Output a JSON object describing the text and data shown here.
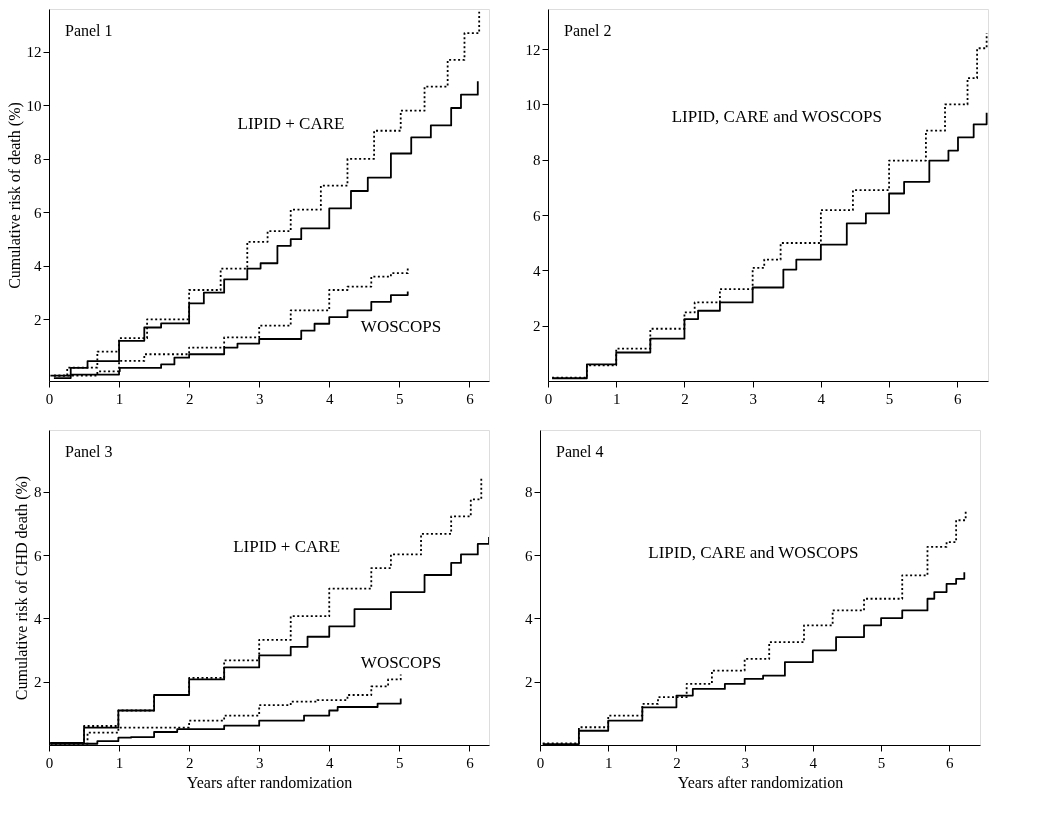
{
  "chart_data": [
    {
      "type": "step",
      "title": "Panel 1",
      "ylabel": "Cumulative risk of death (%)",
      "xlim": [
        0,
        6.28
      ],
      "xticks": [
        0,
        1,
        2,
        3,
        4,
        5,
        6
      ],
      "ylim": [
        -0.3,
        13.6
      ],
      "yticks": [
        2,
        4,
        6,
        8,
        10,
        12
      ],
      "grid": false,
      "series": [
        {
          "color": "#000000",
          "line_style": "dotted",
          "x": [
            0.07,
            0.26,
            0.69,
            1.0,
            1.4,
            2.0,
            2.45,
            2.83,
            3.12,
            3.45,
            3.88,
            4.26,
            4.64,
            5.02,
            5.36,
            5.69,
            5.93,
            6.14
          ],
          "values": [
            -0.1,
            0.2,
            0.8,
            1.3,
            2.0,
            3.1,
            3.9,
            4.9,
            5.3,
            6.1,
            7.0,
            8.0,
            9.05,
            9.8,
            10.7,
            11.7,
            12.7,
            13.5
          ]
        },
        {
          "color": "#000000",
          "line_style": "solid",
          "x": [
            0.07,
            0.31,
            0.55,
            1.0,
            1.36,
            1.6,
            2.0,
            2.21,
            2.5,
            2.83,
            3.02,
            3.26,
            3.45,
            3.6,
            4.0,
            4.31,
            4.55,
            4.88,
            5.17,
            5.45,
            5.74,
            5.88,
            6.12
          ],
          "values": [
            -0.19,
            0.19,
            0.44,
            1.2,
            1.7,
            1.85,
            2.6,
            3.0,
            3.5,
            3.9,
            4.1,
            4.75,
            5.0,
            5.4,
            6.15,
            6.8,
            7.3,
            8.2,
            8.8,
            9.25,
            9.9,
            10.4,
            10.9
          ]
        },
        {
          "color": "#000000",
          "line_style": "dotted",
          "x": [
            0.07,
            0.69,
            1.0,
            1.36,
            2.0,
            2.5,
            3.0,
            3.45,
            4.0,
            4.26,
            4.6,
            4.88,
            5.12
          ],
          "values": [
            -0.1,
            0.06,
            0.45,
            0.7,
            0.95,
            1.33,
            1.77,
            2.34,
            3.1,
            3.23,
            3.6,
            3.73,
            3.92
          ]
        },
        {
          "color": "#000000",
          "line_style": "solid",
          "x": [
            0.02,
            0.31,
            1.0,
            1.01,
            1.4,
            1.6,
            1.79,
            2.0,
            2.5,
            2.69,
            3.0,
            3.6,
            3.79,
            4.0,
            4.26,
            4.6,
            4.88,
            5.12
          ],
          "values": [
            -0.1,
            -0.06,
            0.06,
            0.19,
            0.19,
            0.32,
            0.57,
            0.7,
            0.95,
            1.1,
            1.27,
            1.58,
            1.84,
            2.09,
            2.34,
            2.66,
            2.91,
            3.04
          ]
        }
      ],
      "annotations": [
        "LIPID + CARE",
        "WOSCOPS"
      ]
    },
    {
      "type": "step",
      "title": "Panel 2",
      "xlim": [
        0,
        6.45
      ],
      "xticks": [
        0,
        1,
        2,
        3,
        4,
        5,
        6
      ],
      "ylim": [
        0,
        13.45
      ],
      "yticks": [
        2,
        4,
        6,
        8,
        10,
        12
      ],
      "grid": false,
      "series": [
        {
          "color": "#000000",
          "line_style": "dotted",
          "x": [
            0.06,
            0.57,
            1.0,
            1.5,
            2.0,
            2.15,
            2.52,
            3.0,
            3.17,
            3.41,
            4.0,
            4.47,
            5.0,
            5.54,
            5.82,
            6.15,
            6.29,
            6.43
          ],
          "values": [
            0.12,
            0.57,
            1.17,
            1.89,
            2.48,
            2.84,
            3.32,
            4.09,
            4.39,
            4.99,
            6.18,
            6.9,
            7.97,
            9.05,
            10.0,
            10.95,
            12.03,
            12.57
          ]
        },
        {
          "color": "#000000",
          "line_style": "solid",
          "x": [
            0.06,
            0.57,
            1.0,
            1.5,
            2.0,
            2.2,
            2.52,
            3.0,
            3.45,
            3.64,
            4.0,
            4.38,
            4.66,
            5.0,
            5.22,
            5.59,
            5.87,
            6.01,
            6.24,
            6.43
          ],
          "values": [
            0.1,
            0.6,
            1.03,
            1.53,
            2.24,
            2.54,
            2.84,
            3.38,
            4.03,
            4.39,
            4.93,
            5.7,
            6.06,
            6.78,
            7.2,
            7.97,
            8.33,
            8.81,
            9.28,
            9.7
          ]
        }
      ],
      "annotations": [
        "LIPID, CARE and WOSCOPS"
      ]
    },
    {
      "type": "step",
      "title": "Panel 3",
      "ylabel": "Cumulative risk of CHD death (%)",
      "xlabel": "Years after randomization",
      "xlim": [
        0,
        6.28
      ],
      "xticks": [
        0,
        1,
        2,
        3,
        4,
        5,
        6
      ],
      "ylim": [
        0,
        9.95
      ],
      "yticks": [
        2,
        4,
        6,
        8
      ],
      "grid": false,
      "series": [
        {
          "color": "#000000",
          "line_style": "dotted",
          "x": [
            0.02,
            0.5,
            0.99,
            1.5,
            2.0,
            2.5,
            3.0,
            3.45,
            4.0,
            4.6,
            4.88,
            5.31,
            5.74,
            6.02,
            6.17
          ],
          "values": [
            0.07,
            0.6,
            1.09,
            1.58,
            2.12,
            2.67,
            3.32,
            4.07,
            4.94,
            5.59,
            6.02,
            6.67,
            7.22,
            7.76,
            8.41
          ]
        },
        {
          "color": "#000000",
          "line_style": "solid",
          "x": [
            0.02,
            0.5,
            0.99,
            1.5,
            2.0,
            2.5,
            3.0,
            3.45,
            3.69,
            4.0,
            4.36,
            4.88,
            5.36,
            5.74,
            5.88,
            6.12,
            6.28
          ],
          "values": [
            0.07,
            0.55,
            1.09,
            1.58,
            2.07,
            2.45,
            2.83,
            3.1,
            3.42,
            3.75,
            4.29,
            4.83,
            5.37,
            5.75,
            6.02,
            6.35,
            6.57
          ]
        },
        {
          "color": "#000000",
          "line_style": "dotted",
          "x": [
            0.02,
            0.55,
            0.99,
            1.45,
            2.0,
            2.5,
            3.0,
            3.45,
            3.83,
            4.26,
            4.6,
            4.83,
            4.84,
            5.02
          ],
          "values": [
            0.04,
            0.39,
            0.55,
            0.55,
            0.77,
            0.93,
            1.26,
            1.37,
            1.42,
            1.58,
            1.85,
            1.85,
            2.07,
            2.23
          ]
        },
        {
          "color": "#000000",
          "line_style": "solid",
          "x": [
            0.02,
            0.69,
            0.99,
            1.17,
            1.5,
            1.83,
            2.5,
            3.0,
            3.64,
            4.0,
            4.12,
            4.69,
            5.0,
            5.02
          ],
          "values": [
            0.04,
            0.12,
            0.23,
            0.25,
            0.41,
            0.5,
            0.61,
            0.77,
            0.93,
            1.09,
            1.2,
            1.31,
            1.31,
            1.47
          ]
        }
      ],
      "annotations": [
        "LIPID + CARE",
        "WOSCOPS"
      ]
    },
    {
      "type": "step",
      "title": "Panel 4",
      "xlabel": "Years after randomization",
      "xlim": [
        0,
        6.45
      ],
      "xticks": [
        0,
        1,
        2,
        3,
        4,
        5,
        6
      ],
      "ylim": [
        0,
        9.95
      ],
      "yticks": [
        2,
        4,
        6,
        8
      ],
      "grid": false,
      "series": [
        {
          "color": "#000000",
          "line_style": "dotted",
          "x": [
            0.04,
            0.57,
            1.0,
            1.5,
            1.73,
            1.92,
            2.15,
            2.52,
            3.0,
            3.36,
            3.87,
            4.29,
            4.75,
            5.31,
            5.68,
            5.96,
            6.1,
            6.24
          ],
          "values": [
            0.05,
            0.56,
            0.93,
            1.3,
            1.51,
            1.51,
            1.93,
            2.35,
            2.72,
            3.25,
            3.78,
            4.25,
            4.62,
            5.36,
            6.26,
            6.41,
            7.1,
            7.39
          ]
        },
        {
          "color": "#000000",
          "line_style": "solid",
          "x": [
            0.04,
            0.57,
            1.0,
            1.5,
            2.0,
            2.24,
            2.71,
            3.0,
            3.27,
            3.59,
            4.0,
            4.34,
            4.75,
            5.0,
            5.31,
            5.68,
            5.78,
            5.96,
            6.1,
            6.22
          ],
          "values": [
            0.03,
            0.45,
            0.77,
            1.19,
            1.56,
            1.77,
            1.93,
            2.09,
            2.19,
            2.62,
            2.99,
            3.41,
            3.78,
            4.01,
            4.25,
            4.62,
            4.83,
            5.09,
            5.25,
            5.46
          ]
        }
      ],
      "annotations": [
        "LIPID, CARE and WOSCOPS"
      ]
    }
  ]
}
